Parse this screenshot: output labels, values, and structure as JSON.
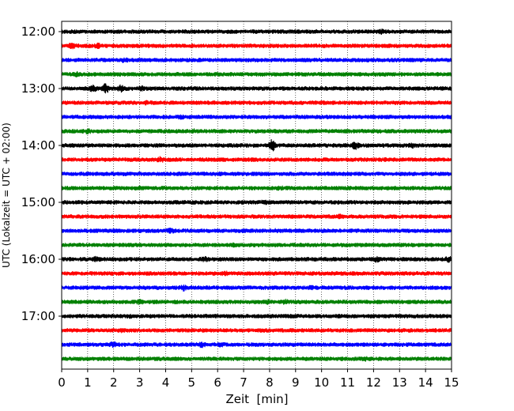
{
  "chart_data": {
    "type": "line",
    "title": "",
    "xlabel": "Zeit  [min]",
    "ylabel": "UTC (Lokalzeit = UTC + 02:00)",
    "xlim": [
      0,
      15
    ],
    "x_ticks": [
      0,
      1,
      2,
      3,
      4,
      5,
      6,
      7,
      8,
      9,
      10,
      11,
      12,
      13,
      14,
      15
    ],
    "x_tick_labels": [
      "0",
      "1",
      "2",
      "3",
      "4",
      "5",
      "6",
      "7",
      "8",
      "9",
      "10",
      "11",
      "12",
      "13",
      "14",
      "15"
    ],
    "y_tick_labels": [
      "12:00",
      "13:00",
      "14:00",
      "15:00",
      "16:00",
      "17:00"
    ],
    "y_tick_rows": [
      0,
      4,
      8,
      12,
      16,
      20
    ],
    "grid": "vertical dotted",
    "legend": "none",
    "colors": [
      "#000000",
      "#ff0000",
      "#0000ff",
      "#008000"
    ],
    "traces": [
      {
        "start": "12:00",
        "color": "#000000",
        "events": [
          {
            "x": 12.3,
            "amp": 1.3
          }
        ]
      },
      {
        "start": "12:15",
        "color": "#ff0000",
        "events": [
          {
            "x": 0.4,
            "amp": 1.4
          },
          {
            "x": 1.4,
            "amp": 1.3
          }
        ]
      },
      {
        "start": "12:30",
        "color": "#0000ff",
        "events": [
          {
            "x": 2.4,
            "amp": 1.3
          }
        ]
      },
      {
        "start": "12:45",
        "color": "#008000",
        "events": [
          {
            "x": 0.6,
            "amp": 1.3
          }
        ]
      },
      {
        "start": "13:00",
        "color": "#000000",
        "events": [
          {
            "x": 1.2,
            "amp": 1.6
          },
          {
            "x": 1.7,
            "amp": 2.0
          },
          {
            "x": 2.3,
            "amp": 1.7
          },
          {
            "x": 3.1,
            "amp": 1.3
          }
        ]
      },
      {
        "start": "13:15",
        "color": "#ff0000",
        "events": [
          {
            "x": 3.3,
            "amp": 1.2
          }
        ]
      },
      {
        "start": "13:30",
        "color": "#0000ff",
        "events": [
          {
            "x": 4.6,
            "amp": 1.2
          }
        ]
      },
      {
        "start": "13:45",
        "color": "#008000",
        "events": [
          {
            "x": 1.0,
            "amp": 1.3
          },
          {
            "x": 5.1,
            "amp": 1.2
          }
        ]
      },
      {
        "start": "14:00",
        "color": "#000000",
        "events": [
          {
            "x": 8.1,
            "amp": 2.4
          },
          {
            "x": 11.3,
            "amp": 1.7
          },
          {
            "x": 13.5,
            "amp": 1.3
          }
        ]
      },
      {
        "start": "14:15",
        "color": "#ff0000",
        "events": [
          {
            "x": 3.8,
            "amp": 1.4
          },
          {
            "x": 12.6,
            "amp": 1.2
          }
        ]
      },
      {
        "start": "14:30",
        "color": "#0000ff",
        "events": [
          {
            "x": 6.0,
            "amp": 1.2
          }
        ]
      },
      {
        "start": "14:45",
        "color": "#008000",
        "events": [
          {
            "x": 2.9,
            "amp": 1.2
          },
          {
            "x": 8.4,
            "amp": 1.2
          }
        ]
      },
      {
        "start": "15:00",
        "color": "#000000",
        "events": [
          {
            "x": 7.8,
            "amp": 1.2
          }
        ]
      },
      {
        "start": "15:15",
        "color": "#ff0000",
        "events": [
          {
            "x": 10.7,
            "amp": 1.2
          }
        ]
      },
      {
        "start": "15:30",
        "color": "#0000ff",
        "events": [
          {
            "x": 4.2,
            "amp": 1.3
          },
          {
            "x": 8.2,
            "amp": 1.2
          }
        ]
      },
      {
        "start": "15:45",
        "color": "#008000",
        "events": [
          {
            "x": 6.6,
            "amp": 1.2
          }
        ]
      },
      {
        "start": "16:00",
        "color": "#000000",
        "events": [
          {
            "x": 1.3,
            "amp": 1.3
          },
          {
            "x": 5.5,
            "amp": 1.3
          },
          {
            "x": 12.1,
            "amp": 1.4
          },
          {
            "x": 14.9,
            "amp": 1.6
          }
        ]
      },
      {
        "start": "16:15",
        "color": "#ff0000",
        "events": [
          {
            "x": 6.3,
            "amp": 1.2
          }
        ]
      },
      {
        "start": "16:30",
        "color": "#0000ff",
        "events": [
          {
            "x": 4.7,
            "amp": 1.5
          },
          {
            "x": 9.6,
            "amp": 1.2
          }
        ]
      },
      {
        "start": "16:45",
        "color": "#008000",
        "events": [
          {
            "x": 3.0,
            "amp": 1.3
          },
          {
            "x": 7.9,
            "amp": 1.3
          },
          {
            "x": 8.6,
            "amp": 1.3
          }
        ]
      },
      {
        "start": "17:00",
        "color": "#000000",
        "events": [
          {
            "x": 2.7,
            "amp": 1.2
          }
        ]
      },
      {
        "start": "17:15",
        "color": "#ff0000",
        "events": [
          {
            "x": 2.3,
            "amp": 1.3
          }
        ]
      },
      {
        "start": "17:30",
        "color": "#0000ff",
        "events": [
          {
            "x": 2.0,
            "amp": 1.4
          },
          {
            "x": 5.4,
            "amp": 1.4
          },
          {
            "x": 6.1,
            "amp": 1.3
          }
        ]
      },
      {
        "start": "17:45",
        "color": "#008000",
        "events": [
          {
            "x": 11.7,
            "amp": 1.2
          }
        ]
      }
    ]
  }
}
